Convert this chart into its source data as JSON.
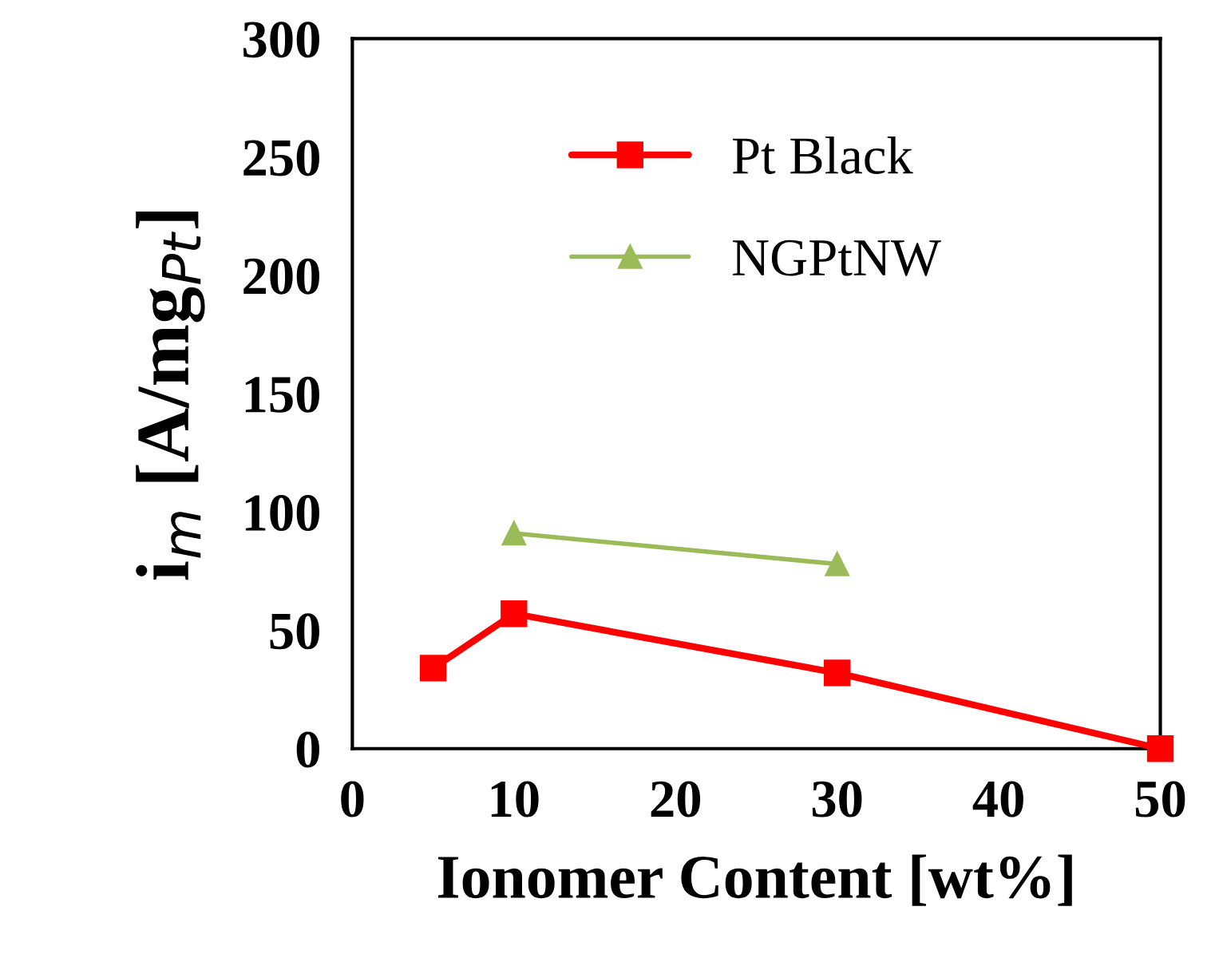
{
  "chart_data": {
    "type": "line",
    "xlabel": "Ionomer Content [wt%]",
    "ylabel": "i$_{m}$ [A/mg$_{Pt}$]",
    "xlim": [
      0,
      50
    ],
    "xticks": [
      0,
      10,
      20,
      30,
      40,
      50
    ],
    "ylim": [
      0,
      300
    ],
    "yticks": [
      0,
      50,
      100,
      150,
      200,
      250,
      300
    ],
    "grid": false,
    "legend": "top",
    "series": [
      {
        "name": "Pt Black",
        "color": "#ff0000",
        "marker": "square",
        "x": [
          5,
          10,
          30,
          50
        ],
        "values": [
          34,
          57,
          32,
          0
        ]
      },
      {
        "name": "NGPtNW",
        "color": "#9bbb59",
        "marker": "triangle",
        "x": [
          10,
          30
        ],
        "values": [
          91,
          78
        ]
      }
    ]
  }
}
